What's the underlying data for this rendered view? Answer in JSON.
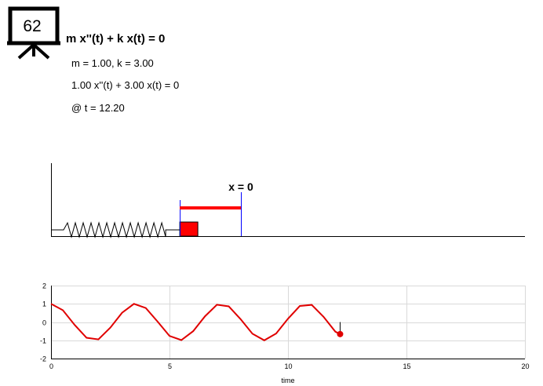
{
  "badge": {
    "number": "62",
    "icon": "presentation-board-icon"
  },
  "equation": {
    "title": "m x''(t) + k x(t) = 0",
    "params": "m = 1.00, k = 3.00",
    "substituted": "1.00 x''(t) + 3.00 x(t) = 0",
    "time": "@ t = 12.20"
  },
  "simulation": {
    "equilibrium_label": "x = 0",
    "t": 12.2,
    "displacement": -0.66,
    "colors": {
      "mass": "#ff0000",
      "marker": "#0000ff",
      "arrow": "#ff0000",
      "spring": "#000000"
    }
  },
  "chart_data": {
    "type": "line",
    "xlabel": "time",
    "ylabel": "",
    "xlim": [
      0,
      20
    ],
    "ylim": [
      -2,
      2
    ],
    "xticks": [
      0,
      5,
      10,
      15,
      20
    ],
    "yticks": [
      -2,
      -1,
      0,
      1,
      2
    ],
    "grid": true,
    "series": [
      {
        "color": "#e00000",
        "x": [
          0,
          0.5,
          1,
          1.5,
          2,
          2.5,
          3,
          3.5,
          4,
          4.5,
          5,
          5.5,
          6,
          6.5,
          7,
          7.5,
          8,
          8.5,
          9,
          9.5,
          10,
          10.5,
          11,
          11.5,
          12,
          12.2
        ],
        "y": [
          1.0,
          0.65,
          -0.16,
          -0.86,
          -0.95,
          -0.31,
          0.51,
          1.0,
          0.77,
          0.02,
          -0.76,
          -0.99,
          -0.5,
          0.32,
          0.95,
          0.86,
          0.16,
          -0.64,
          -1.0,
          -0.63,
          0.18,
          0.88,
          0.94,
          0.29,
          -0.53,
          -0.66
        ]
      }
    ],
    "current_point": {
      "x": 12.2,
      "y": -0.66
    }
  }
}
